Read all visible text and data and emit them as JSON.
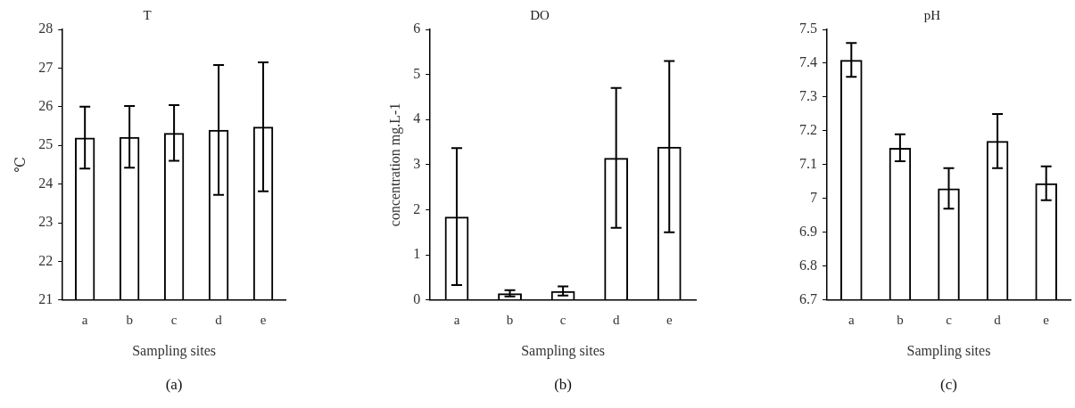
{
  "chart_data": [
    {
      "type": "bar",
      "title": "T",
      "xlabel": "Sampling sites",
      "ylabel": "℃",
      "categories": [
        "a",
        "b",
        "c",
        "d",
        "e"
      ],
      "values": [
        25.2,
        25.22,
        25.32,
        25.4,
        25.48
      ],
      "errors": [
        0.8,
        0.8,
        0.72,
        1.68,
        1.67
      ],
      "color": "#000000",
      "ylim": [
        21,
        28
      ],
      "yticks": [
        21,
        22,
        23,
        24,
        25,
        26,
        27,
        28
      ],
      "grid": false,
      "annotations": [
        "(a)"
      ]
    },
    {
      "type": "bar",
      "title": "DO",
      "xlabel": "Sampling sites",
      "ylabel": "concentration mg.L-1",
      "categories": [
        "a",
        "b",
        "c",
        "d",
        "e"
      ],
      "values": [
        1.85,
        0.15,
        0.2,
        3.15,
        3.4
      ],
      "errors": [
        1.52,
        0.07,
        0.1,
        1.55,
        1.9
      ],
      "color": "#000000",
      "ylim": [
        0,
        6
      ],
      "yticks": [
        0,
        1,
        2,
        3,
        4,
        5,
        6
      ],
      "grid": false,
      "annotations": [
        "(b)"
      ]
    },
    {
      "type": "bar",
      "title": "pH",
      "xlabel": "Sampling sites",
      "categories": [
        "a",
        "b",
        "c",
        "d",
        "e"
      ],
      "values": [
        7.41,
        7.15,
        7.03,
        7.17,
        7.045
      ],
      "errors": [
        0.05,
        0.04,
        0.06,
        0.08,
        0.05
      ],
      "color": "#000000",
      "ylim": [
        6.7,
        7.5
      ],
      "yticks": [
        6.7,
        6.8,
        6.9,
        7,
        7.1,
        7.2,
        7.3,
        7.4,
        7.5
      ],
      "grid": false,
      "annotations": [
        "(c)"
      ]
    }
  ]
}
